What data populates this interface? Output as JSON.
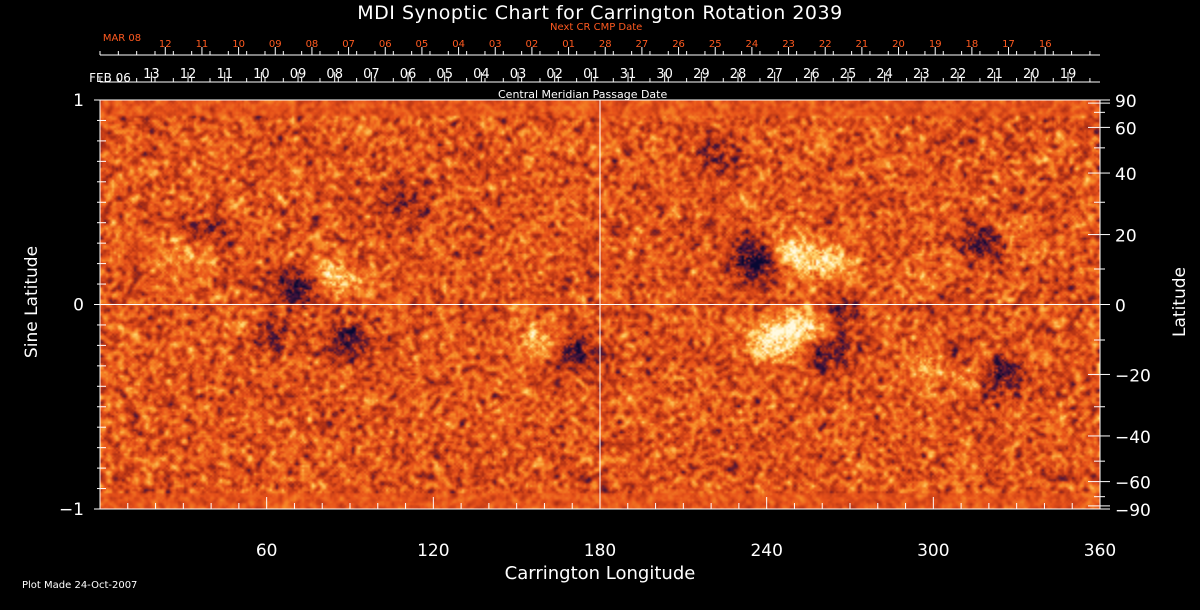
{
  "title": "MDI Synoptic Chart for Carrington Rotation 2039",
  "next_cr_label": "Next CR CMP Date",
  "central_meridian_label": "Central Meridian Passage Date",
  "plot_made": "Plot Made 24-Oct-2007",
  "colors": {
    "background": "#000000",
    "map_base": "#e8501a",
    "positive": "#fff2a0",
    "negative": "#0b0b3a",
    "top_labels": "#ff5a20"
  },
  "chart_data": {
    "type": "heatmap",
    "title": "MDI Synoptic Chart for Carrington Rotation 2039",
    "xlabel": "Carrington Longitude",
    "ylabel_left": "Sine Latitude",
    "ylabel_right": "Latitude",
    "xlim": [
      0,
      360
    ],
    "ylim": [
      -1,
      1
    ],
    "grid": "axis lines at longitude 180 and sine latitude 0",
    "x_tick_labels": [
      "60",
      "120",
      "180",
      "240",
      "300",
      "360"
    ],
    "x_ticks": [
      60,
      120,
      180,
      240,
      300,
      360
    ],
    "y_left_tick_labels": [
      "1",
      "0",
      "−1"
    ],
    "y_left_ticks": [
      1,
      0,
      -1
    ],
    "y_right_tick_labels": [
      "90",
      "60",
      "40",
      "20",
      "0",
      "−20",
      "−40",
      "−60",
      "−90"
    ],
    "y_right_ticks": [
      90,
      60,
      40,
      20,
      0,
      -20,
      -40,
      -60,
      -90
    ],
    "cmp_dates_start": "FEB 06",
    "cmp_dates": [
      "13",
      "12",
      "11",
      "10",
      "09",
      "08",
      "07",
      "06",
      "05",
      "04",
      "03",
      "02",
      "01",
      "31",
      "30",
      "29",
      "28",
      "27",
      "26",
      "25",
      "24",
      "23",
      "22",
      "21",
      "20",
      "19"
    ],
    "next_cr_start": "MAR 08",
    "next_cr_dates": [
      "12",
      "11",
      "10",
      "09",
      "08",
      "07",
      "06",
      "05",
      "04",
      "03",
      "02",
      "01",
      "28",
      "27",
      "26",
      "25",
      "24",
      "23",
      "22",
      "21",
      "20",
      "19",
      "18",
      "17",
      "16"
    ],
    "active_regions": [
      {
        "polarity": "negative",
        "lon": 237,
        "sinlat": 0.22,
        "strength": 1.0
      },
      {
        "polarity": "positive",
        "lon": 247,
        "sinlat": 0.24,
        "strength": 0.8
      },
      {
        "polarity": "positive",
        "lon": 262,
        "sinlat": 0.2,
        "strength": 0.6
      },
      {
        "polarity": "negative",
        "lon": 320,
        "sinlat": 0.3,
        "strength": 0.7
      },
      {
        "polarity": "positive",
        "lon": 327,
        "sinlat": 0.32,
        "strength": 0.4
      },
      {
        "polarity": "negative",
        "lon": 72,
        "sinlat": 0.09,
        "strength": 0.7
      },
      {
        "polarity": "positive",
        "lon": 84,
        "sinlat": 0.13,
        "strength": 0.6
      },
      {
        "polarity": "negative",
        "lon": 60,
        "sinlat": -0.14,
        "strength": 0.6
      },
      {
        "polarity": "negative",
        "lon": 90,
        "sinlat": -0.17,
        "strength": 0.5
      },
      {
        "polarity": "positive",
        "lon": 55,
        "sinlat": -0.12,
        "strength": 0.4
      },
      {
        "polarity": "negative",
        "lon": 170,
        "sinlat": -0.22,
        "strength": 0.6
      },
      {
        "polarity": "positive",
        "lon": 160,
        "sinlat": -0.18,
        "strength": 0.5
      },
      {
        "polarity": "positive",
        "lon": 243,
        "sinlat": -0.18,
        "strength": 0.9
      },
      {
        "polarity": "positive",
        "lon": 255,
        "sinlat": -0.1,
        "strength": 0.7
      },
      {
        "polarity": "negative",
        "lon": 262,
        "sinlat": -0.23,
        "strength": 0.5
      },
      {
        "polarity": "negative",
        "lon": 322,
        "sinlat": -0.34,
        "strength": 1.0
      },
      {
        "polarity": "positive",
        "lon": 316,
        "sinlat": -0.33,
        "strength": 1.0
      },
      {
        "polarity": "negative",
        "lon": 310,
        "sinlat": -0.28,
        "strength": 0.5
      },
      {
        "polarity": "positive",
        "lon": 299,
        "sinlat": -0.3,
        "strength": 0.4
      },
      {
        "polarity": "positive",
        "lon": 299,
        "sinlat": 0.09,
        "strength": 0.5
      },
      {
        "polarity": "negative",
        "lon": 301,
        "sinlat": 0.08,
        "strength": 0.4
      },
      {
        "polarity": "negative",
        "lon": 266,
        "sinlat": -0.04,
        "strength": 0.4
      },
      {
        "polarity": "negative",
        "lon": 38,
        "sinlat": 0.35,
        "strength": 0.3
      },
      {
        "polarity": "negative",
        "lon": 110,
        "sinlat": 0.5,
        "strength": 0.3
      },
      {
        "polarity": "positive",
        "lon": 30,
        "sinlat": 0.25,
        "strength": 0.3
      },
      {
        "polarity": "negative",
        "lon": 222,
        "sinlat": 0.74,
        "strength": 0.3
      }
    ]
  }
}
